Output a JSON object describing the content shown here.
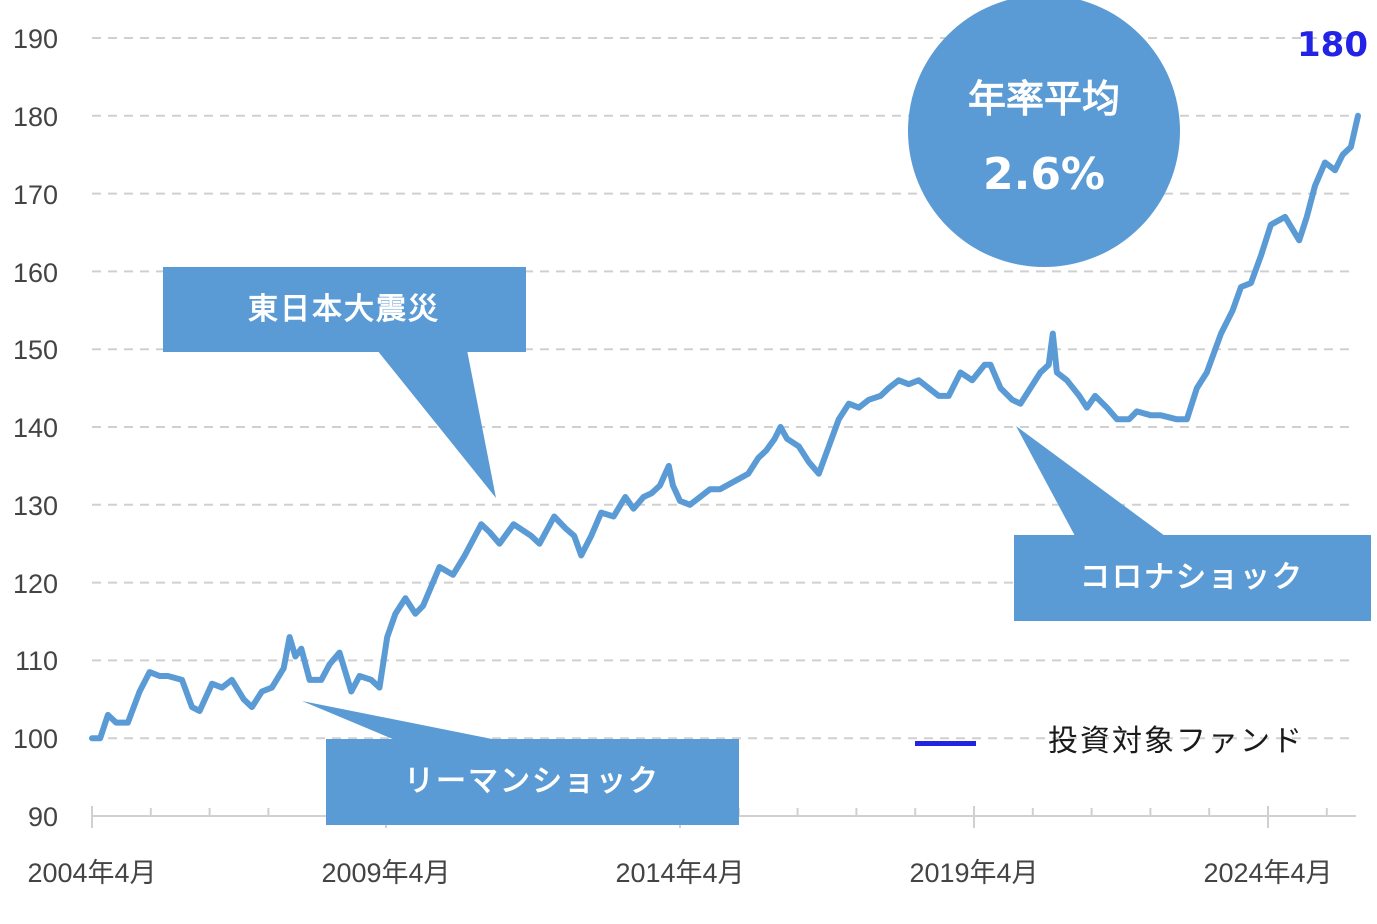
{
  "chart_data": {
    "type": "line",
    "title": "",
    "xlabel": "",
    "ylabel": "",
    "ylim": [
      90,
      190
    ],
    "yticks": [
      90,
      100,
      110,
      120,
      130,
      140,
      150,
      160,
      170,
      180,
      190
    ],
    "xtick_labels": [
      "2004年4月",
      "2009年4月",
      "2014年4月",
      "2019年4月",
      "2024年4月"
    ],
    "grid": "horizontal dashed",
    "legend_position": "lower right",
    "series": [
      {
        "name": "投資対象ファンド",
        "color": "#5B9BD5",
        "legend_color": "#2323E6",
        "x_years": [
          2004.25,
          2004.39,
          2004.52,
          2004.66,
          2004.86,
          2005.06,
          2005.23,
          2005.4,
          2005.54,
          2005.78,
          2005.95,
          2006.08,
          2006.29,
          2006.46,
          2006.63,
          2006.83,
          2006.97,
          2007.14,
          2007.31,
          2007.51,
          2007.61,
          2007.71,
          2007.81,
          2007.95,
          2008.15,
          2008.29,
          2008.46,
          2008.66,
          2008.8,
          2009.0,
          2009.14,
          2009.27,
          2009.41,
          2009.58,
          2009.75,
          2009.88,
          2010.16,
          2010.39,
          2010.59,
          2010.87,
          2011.01,
          2011.18,
          2011.42,
          2011.72,
          2011.86,
          2012.11,
          2012.3,
          2012.45,
          2012.57,
          2012.74,
          2012.91,
          2013.12,
          2013.32,
          2013.46,
          2013.63,
          2013.77,
          2013.91,
          2014.06,
          2014.13,
          2014.25,
          2014.42,
          2014.59,
          2014.76,
          2014.93,
          2015.17,
          2015.41,
          2015.58,
          2015.72,
          2015.86,
          2015.96,
          2016.07,
          2016.27,
          2016.44,
          2016.61,
          2016.78,
          2016.95,
          2017.12,
          2017.29,
          2017.46,
          2017.66,
          2017.8,
          2017.97,
          2018.14,
          2018.31,
          2018.48,
          2018.65,
          2018.82,
          2019.02,
          2019.22,
          2019.43,
          2019.53,
          2019.7,
          2019.9,
          2020.04,
          2020.21,
          2020.38,
          2020.52,
          2020.59,
          2020.66,
          2020.83,
          2021.04,
          2021.17,
          2021.31,
          2021.51,
          2021.68,
          2021.89,
          2022.02,
          2022.26,
          2022.43,
          2022.69,
          2022.87,
          2023.04,
          2023.21,
          2023.45,
          2023.65,
          2023.79,
          2023.96,
          2024.13,
          2024.3,
          2024.54,
          2024.78,
          2024.91,
          2025.05,
          2025.22,
          2025.39,
          2025.52,
          2025.66,
          2025.78
        ],
        "values": [
          100,
          100,
          103,
          102,
          102,
          106,
          108.5,
          108,
          108,
          107.5,
          104,
          103.5,
          107,
          106.5,
          107.5,
          105,
          104,
          106,
          106.5,
          109,
          113,
          110.5,
          111.5,
          107.5,
          107.5,
          109.5,
          111,
          106,
          108,
          107.5,
          106.5,
          113,
          116,
          118,
          116,
          117,
          122,
          121,
          123.5,
          127.5,
          126.5,
          125,
          127.5,
          126,
          125,
          128.5,
          127,
          126,
          123.5,
          126,
          129,
          128.5,
          131,
          129.5,
          131,
          131.5,
          132.5,
          135,
          132.5,
          130.5,
          130,
          131,
          132,
          132,
          133,
          134,
          136,
          137,
          138.5,
          140,
          138.5,
          137.5,
          135.5,
          134,
          137.5,
          141,
          143,
          142.5,
          143.5,
          144,
          145,
          146,
          145.5,
          146,
          145,
          144,
          144,
          147,
          146,
          148,
          148,
          145,
          143.5,
          143,
          145,
          147,
          148,
          152,
          147,
          146,
          144,
          142.5,
          144,
          142.5,
          141,
          141,
          142,
          141.5,
          141.5,
          141,
          141,
          145,
          147,
          152,
          155,
          158,
          158.5,
          162,
          166,
          167,
          164,
          167,
          171,
          174,
          173,
          175,
          176,
          180
        ]
      }
    ],
    "annotations": [
      {
        "text": "東日本大震災",
        "type": "callout"
      },
      {
        "text": "リーマンショック",
        "type": "callout"
      },
      {
        "text": "コロナショック",
        "type": "callout"
      },
      {
        "text": "年率平均",
        "value": "2.6%",
        "type": "circle-badge"
      },
      {
        "text": "180",
        "type": "end-value-label",
        "color": "#2323E6"
      }
    ]
  },
  "axes": {
    "y_labels": [
      "90",
      "100",
      "110",
      "120",
      "130",
      "140",
      "150",
      "160",
      "170",
      "180",
      "190"
    ],
    "x_labels": [
      "2004年4月",
      "2009年4月",
      "2014年4月",
      "2019年4月",
      "2024年4月"
    ]
  },
  "callouts": {
    "earthquake": "東日本大震災",
    "lehman": "リーマンショック",
    "corona": "コロナショック"
  },
  "badge": {
    "title": "年率平均",
    "value": "2.6%"
  },
  "end_label": "180",
  "legend": {
    "label": "投資対象ファンド"
  },
  "colors": {
    "line": "#5B9BD5",
    "callout_fill": "#5B9BD5",
    "legend_swatch": "#2323E6",
    "end_label": "#2323E6",
    "grid": "#D0D0D0",
    "axis": "#D0D0D0",
    "tick_text": "#444444"
  }
}
